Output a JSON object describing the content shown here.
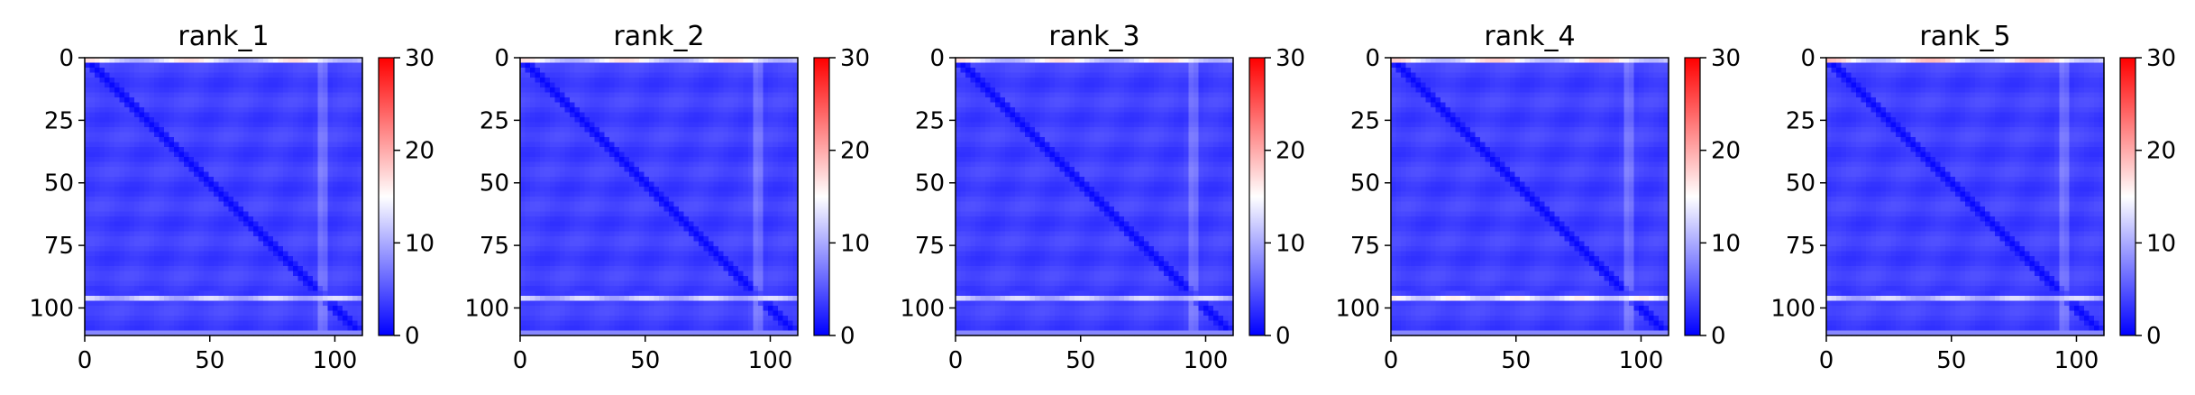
{
  "figure": {
    "panels": [
      "rank_1",
      "rank_2",
      "rank_3",
      "rank_4",
      "rank_5"
    ]
  },
  "chart_data": [
    {
      "type": "heatmap",
      "title": "rank_1",
      "xlabel": "",
      "ylabel": "",
      "xlim": [
        0,
        111
      ],
      "ylim": [
        111,
        0
      ],
      "xticks": [
        0,
        50,
        100
      ],
      "yticks": [
        0,
        25,
        50,
        75,
        100
      ],
      "colorbar": {
        "min": 0,
        "max": 30,
        "ticks": [
          0,
          10,
          20,
          30
        ],
        "colormap": [
          "#0000ff",
          "#ffffff",
          "#ff0000"
        ]
      },
      "features": {
        "background": 3,
        "diagonal": 0.5,
        "bright_row_y": 96,
        "bright_row_value": 14,
        "top_row_value": 17,
        "vertical_band_x": 95
      }
    },
    {
      "type": "heatmap",
      "title": "rank_2",
      "xlabel": "",
      "ylabel": "",
      "xlim": [
        0,
        111
      ],
      "ylim": [
        111,
        0
      ],
      "xticks": [
        0,
        50,
        100
      ],
      "yticks": [
        0,
        25,
        50,
        75,
        100
      ],
      "colorbar": {
        "min": 0,
        "max": 30,
        "ticks": [
          0,
          10,
          20,
          30
        ],
        "colormap": [
          "#0000ff",
          "#ffffff",
          "#ff0000"
        ]
      },
      "features": {
        "background": 3,
        "diagonal": 0.5,
        "bright_row_y": 96,
        "bright_row_value": 14,
        "top_row_value": 17,
        "vertical_band_x": 95
      }
    },
    {
      "type": "heatmap",
      "title": "rank_3",
      "xlabel": "",
      "ylabel": "",
      "xlim": [
        0,
        111
      ],
      "ylim": [
        111,
        0
      ],
      "xticks": [
        0,
        50,
        100
      ],
      "yticks": [
        0,
        25,
        50,
        75,
        100
      ],
      "colorbar": {
        "min": 0,
        "max": 30,
        "ticks": [
          0,
          10,
          20,
          30
        ],
        "colormap": [
          "#0000ff",
          "#ffffff",
          "#ff0000"
        ]
      },
      "features": {
        "background": 3,
        "diagonal": 0.5,
        "bright_row_y": 96,
        "bright_row_value": 14,
        "top_row_value": 17,
        "vertical_band_x": 95
      }
    },
    {
      "type": "heatmap",
      "title": "rank_4",
      "xlabel": "",
      "ylabel": "",
      "xlim": [
        0,
        111
      ],
      "ylim": [
        111,
        0
      ],
      "xticks": [
        0,
        50,
        100
      ],
      "yticks": [
        0,
        25,
        50,
        75,
        100
      ],
      "colorbar": {
        "min": 0,
        "max": 30,
        "ticks": [
          0,
          10,
          20,
          30
        ],
        "colormap": [
          "#0000ff",
          "#ffffff",
          "#ff0000"
        ]
      },
      "features": {
        "background": 3,
        "diagonal": 0.5,
        "bright_row_y": 96,
        "bright_row_value": 17,
        "top_row_value": 18,
        "vertical_band_x": 95
      }
    },
    {
      "type": "heatmap",
      "title": "rank_5",
      "xlabel": "",
      "ylabel": "",
      "xlim": [
        0,
        111
      ],
      "ylim": [
        111,
        0
      ],
      "xticks": [
        0,
        50,
        100
      ],
      "yticks": [
        0,
        25,
        50,
        75,
        100
      ],
      "colorbar": {
        "min": 0,
        "max": 30,
        "ticks": [
          0,
          10,
          20,
          30
        ],
        "colormap": [
          "#0000ff",
          "#ffffff",
          "#ff0000"
        ]
      },
      "features": {
        "background": 3,
        "diagonal": 0.5,
        "bright_row_y": 96,
        "bright_row_value": 14,
        "top_row_value": 19,
        "vertical_band_x": 95
      }
    }
  ]
}
